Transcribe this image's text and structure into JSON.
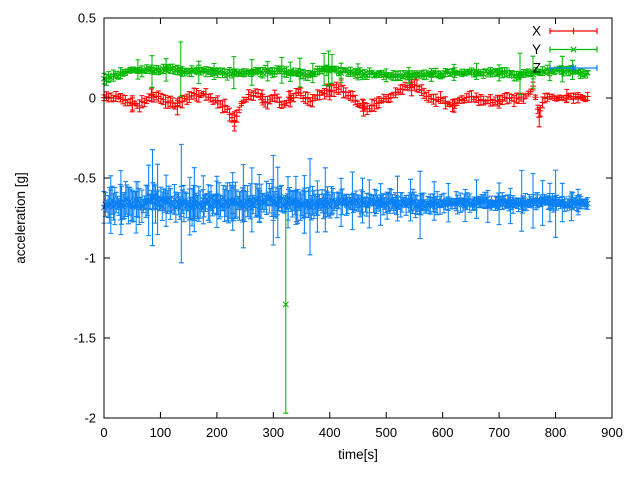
{
  "chart_data": {
    "type": "scatter",
    "subtype": "yerrorbars",
    "title": "",
    "xlabel": "time[s]",
    "ylabel": "acceleration [g]",
    "xlim": [
      0,
      900
    ],
    "ylim": [
      -2,
      0.5
    ],
    "x_ticks": [
      "0",
      "100",
      "200",
      "300",
      "400",
      "500",
      "600",
      "700",
      "800",
      "900"
    ],
    "y_ticks": [
      "0.5",
      "0",
      "-0.5",
      "-1",
      "-1.5",
      "-2"
    ],
    "grid": false,
    "legend_position": "top-right-inside",
    "background_color": "#ffffff",
    "axis_color": "#000000",
    "series": [
      {
        "name": "X",
        "color": "#ff0000",
        "marker": "plus",
        "t_start": 0,
        "t_end": 858,
        "dt": 4.2,
        "jitter": 0.013,
        "err_range": [
          0.012,
          0.04
        ],
        "err_profile": [
          [
            0,
            1
          ],
          [
            600,
            1
          ],
          [
            858,
            0.8
          ]
        ],
        "mean_keypoints": [
          [
            0,
            0.0
          ],
          [
            15,
            0.01
          ],
          [
            45,
            -0.03
          ],
          [
            62,
            -0.05
          ],
          [
            80,
            0.01
          ],
          [
            95,
            0.02
          ],
          [
            112,
            -0.02
          ],
          [
            128,
            -0.05
          ],
          [
            142,
            -0.01
          ],
          [
            160,
            0.02
          ],
          [
            180,
            0.02
          ],
          [
            200,
            -0.02
          ],
          [
            215,
            -0.06
          ],
          [
            231,
            -0.14
          ],
          [
            243,
            -0.04
          ],
          [
            258,
            0.02
          ],
          [
            273,
            0.03
          ],
          [
            288,
            -0.03
          ],
          [
            302,
            0.02
          ],
          [
            316,
            -0.04
          ],
          [
            330,
            0.0
          ],
          [
            345,
            0.03
          ],
          [
            360,
            -0.02
          ],
          [
            380,
            0.01
          ],
          [
            400,
            0.05
          ],
          [
            418,
            0.07
          ],
          [
            435,
            0.02
          ],
          [
            452,
            -0.04
          ],
          [
            466,
            -0.07
          ],
          [
            480,
            -0.04
          ],
          [
            497,
            0.0
          ],
          [
            515,
            0.02
          ],
          [
            535,
            0.07
          ],
          [
            550,
            0.08
          ],
          [
            565,
            0.03
          ],
          [
            580,
            0.0
          ],
          [
            600,
            -0.01
          ],
          [
            615,
            -0.05
          ],
          [
            630,
            -0.02
          ],
          [
            650,
            0.0
          ],
          [
            670,
            -0.01
          ],
          [
            690,
            -0.03
          ],
          [
            710,
            0.0
          ],
          [
            730,
            -0.01
          ],
          [
            750,
            0.01
          ],
          [
            761,
            0.07
          ],
          [
            771,
            -0.11
          ],
          [
            780,
            0.01
          ],
          [
            795,
            0.0
          ],
          [
            815,
            0.0
          ],
          [
            835,
            0.01
          ],
          [
            858,
            0.0
          ]
        ],
        "err_events": [
          [
            50,
            0.05
          ],
          [
            85,
            0.045
          ],
          [
            130,
            0.05
          ],
          [
            231,
            0.06
          ],
          [
            280,
            0.04
          ],
          [
            330,
            0.05
          ],
          [
            400,
            0.05
          ],
          [
            460,
            0.05
          ],
          [
            545,
            0.05
          ],
          [
            620,
            0.04
          ],
          [
            700,
            0.04
          ],
          [
            771,
            0.06
          ],
          [
            820,
            0.04
          ]
        ],
        "outliers": []
      },
      {
        "name": "Y",
        "color": "#00b800",
        "marker": "cross",
        "t_start": 0,
        "t_end": 858,
        "dt": 4.2,
        "jitter": 0.011,
        "err_range": [
          0.012,
          0.035
        ],
        "err_profile": [
          [
            0,
            1
          ],
          [
            858,
            0.9
          ]
        ],
        "mean_keypoints": [
          [
            0,
            0.11
          ],
          [
            12,
            0.13
          ],
          [
            30,
            0.15
          ],
          [
            55,
            0.17
          ],
          [
            85,
            0.17
          ],
          [
            115,
            0.18
          ],
          [
            145,
            0.17
          ],
          [
            175,
            0.17
          ],
          [
            205,
            0.16
          ],
          [
            235,
            0.15
          ],
          [
            265,
            0.16
          ],
          [
            295,
            0.16
          ],
          [
            315,
            0.17
          ],
          [
            335,
            0.16
          ],
          [
            360,
            0.15
          ],
          [
            385,
            0.17
          ],
          [
            398,
            0.18
          ],
          [
            412,
            0.17
          ],
          [
            435,
            0.16
          ],
          [
            465,
            0.15
          ],
          [
            495,
            0.15
          ],
          [
            525,
            0.14
          ],
          [
            555,
            0.15
          ],
          [
            585,
            0.15
          ],
          [
            615,
            0.16
          ],
          [
            645,
            0.16
          ],
          [
            675,
            0.16
          ],
          [
            705,
            0.16
          ],
          [
            735,
            0.14
          ],
          [
            765,
            0.16
          ],
          [
            795,
            0.17
          ],
          [
            820,
            0.17
          ],
          [
            845,
            0.16
          ],
          [
            858,
            0.15
          ]
        ],
        "err_events": [
          [
            60,
            0.06
          ],
          [
            85,
            0.1
          ],
          [
            110,
            0.07
          ],
          [
            136,
            0.17
          ],
          [
            168,
            0.07
          ],
          [
            195,
            0.05
          ],
          [
            230,
            0.1
          ],
          [
            262,
            0.08
          ],
          [
            290,
            0.06
          ],
          [
            315,
            0.08
          ],
          [
            330,
            0.06
          ],
          [
            347,
            0.09
          ],
          [
            370,
            0.06
          ],
          [
            390,
            0.1
          ],
          [
            398,
            0.11
          ],
          [
            404,
            0.09
          ],
          [
            420,
            0.06
          ],
          [
            450,
            0.05
          ],
          [
            500,
            0.04
          ],
          [
            540,
            0.05
          ],
          [
            580,
            0.04
          ],
          [
            620,
            0.05
          ],
          [
            660,
            0.05
          ],
          [
            700,
            0.05
          ],
          [
            737,
            0.13
          ],
          [
            760,
            0.1
          ],
          [
            790,
            0.06
          ],
          [
            812,
            0.08
          ],
          [
            830,
            0.06
          ]
        ],
        "outliers": [
          [
            322,
            -1.29,
            0.68
          ]
        ]
      },
      {
        "name": "Z",
        "color": "#0a80f5",
        "marker": "star",
        "t_start": 0,
        "t_end": 858,
        "dt": 2.4,
        "jitter": 0.028,
        "err_range": [
          0.03,
          0.12
        ],
        "err_profile": [
          [
            0,
            1
          ],
          [
            300,
            1
          ],
          [
            380,
            0.78
          ],
          [
            560,
            0.7
          ],
          [
            620,
            0.52
          ],
          [
            858,
            0.42
          ]
        ],
        "mean_keypoints": [
          [
            0,
            -0.67
          ],
          [
            30,
            -0.66
          ],
          [
            60,
            -0.655
          ],
          [
            90,
            -0.64
          ],
          [
            120,
            -0.66
          ],
          [
            150,
            -0.665
          ],
          [
            180,
            -0.655
          ],
          [
            210,
            -0.65
          ],
          [
            240,
            -0.66
          ],
          [
            270,
            -0.655
          ],
          [
            300,
            -0.64
          ],
          [
            330,
            -0.65
          ],
          [
            360,
            -0.665
          ],
          [
            390,
            -0.66
          ],
          [
            420,
            -0.65
          ],
          [
            450,
            -0.655
          ],
          [
            480,
            -0.66
          ],
          [
            510,
            -0.655
          ],
          [
            540,
            -0.66
          ],
          [
            570,
            -0.665
          ],
          [
            600,
            -0.66
          ],
          [
            630,
            -0.655
          ],
          [
            660,
            -0.655
          ],
          [
            690,
            -0.65
          ],
          [
            720,
            -0.655
          ],
          [
            750,
            -0.66
          ],
          [
            780,
            -0.64
          ],
          [
            800,
            -0.66
          ],
          [
            830,
            -0.655
          ],
          [
            858,
            -0.66
          ]
        ],
        "err_events": [
          [
            12,
            0.18
          ],
          [
            30,
            0.2
          ],
          [
            57,
            0.16
          ],
          [
            79,
            0.22
          ],
          [
            86,
            0.3
          ],
          [
            95,
            0.22
          ],
          [
            110,
            0.16
          ],
          [
            152,
            0.18
          ],
          [
            160,
            0.2
          ],
          [
            176,
            0.15
          ],
          [
            200,
            0.16
          ],
          [
            228,
            0.18
          ],
          [
            247,
            0.26
          ],
          [
            262,
            0.2
          ],
          [
            275,
            0.15
          ],
          [
            300,
            0.28
          ],
          [
            308,
            0.22
          ],
          [
            326,
            0.16
          ],
          [
            340,
            0.15
          ],
          [
            355,
            0.18
          ],
          [
            378,
            0.16
          ],
          [
            392,
            0.2
          ],
          [
            420,
            0.15
          ],
          [
            440,
            0.18
          ],
          [
            458,
            0.14
          ],
          [
            470,
            0.15
          ],
          [
            490,
            0.13
          ],
          [
            520,
            0.14
          ],
          [
            543,
            0.13
          ],
          [
            560,
            0.21
          ],
          [
            585,
            0.12
          ],
          [
            610,
            0.12
          ],
          [
            640,
            0.1
          ],
          [
            660,
            0.12
          ],
          [
            680,
            0.1
          ],
          [
            700,
            0.13
          ],
          [
            720,
            0.11
          ],
          [
            740,
            0.19
          ],
          [
            760,
            0.17
          ],
          [
            777,
            0.14
          ],
          [
            790,
            0.12
          ],
          [
            800,
            0.21
          ],
          [
            812,
            0.12
          ],
          [
            828,
            0.09
          ],
          [
            840,
            0.08
          ]
        ],
        "outliers": [
          [
            137,
            -0.66,
            0.37
          ],
          [
            365,
            -0.68,
            0.3
          ]
        ]
      }
    ]
  }
}
